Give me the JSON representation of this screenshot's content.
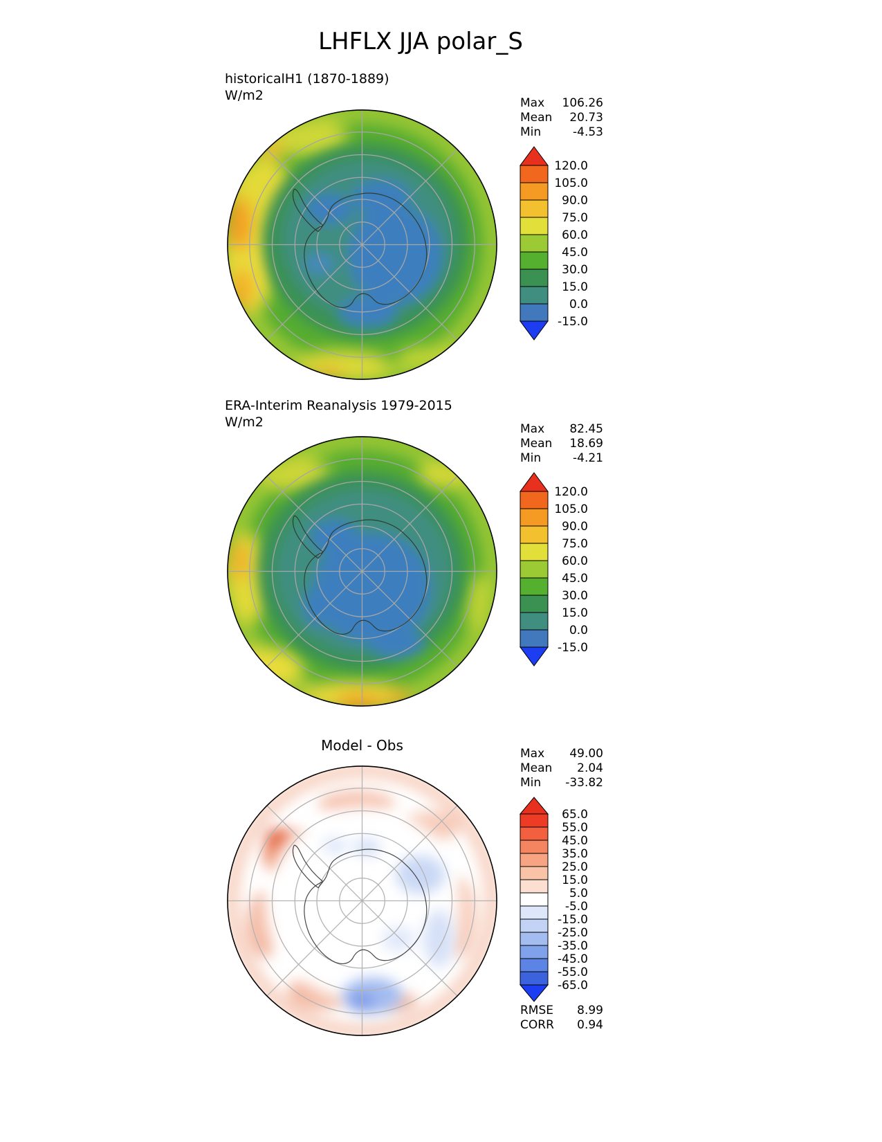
{
  "title": "LHFLX JJA polar_S",
  "panels": {
    "model": {
      "name": "historicalH1 (1870-1889)",
      "units": "W/m2",
      "stats": [
        {
          "label": "Max",
          "value": "106.26"
        },
        {
          "label": "Mean",
          "value": "20.73"
        },
        {
          "label": "Min",
          "value": "-4.53"
        }
      ]
    },
    "obs": {
      "name": "ERA-Interim Reanalysis 1979-2015",
      "units": "W/m2",
      "stats": [
        {
          "label": "Max",
          "value": "82.45"
        },
        {
          "label": "Mean",
          "value": "18.69"
        },
        {
          "label": "Min",
          "value": "-4.21"
        }
      ]
    },
    "diff": {
      "name": "Model - Obs",
      "stats": [
        {
          "label": "Max",
          "value": "49.00"
        },
        {
          "label": "Mean",
          "value": "2.04"
        },
        {
          "label": "Min",
          "value": "-33.82"
        }
      ],
      "metrics": [
        {
          "label": "RMSE",
          "value": "8.99"
        },
        {
          "label": "CORR",
          "value": "0.94"
        }
      ]
    }
  },
  "colorbar_full": {
    "ticks": [
      "120.0",
      "105.0",
      "90.0",
      "75.0",
      "60.0",
      "45.0",
      "30.0",
      "15.0",
      "0.0",
      "-15.0"
    ],
    "colors": [
      "#f2671e",
      "#f59b24",
      "#f3c02f",
      "#e3df3a",
      "#9cca35",
      "#55b02f",
      "#3a9152",
      "#3f8e80",
      "#4279bd"
    ],
    "arrow_top": "#e8301f",
    "arrow_bottom": "#1d3df2"
  },
  "colorbar_diff": {
    "ticks": [
      "65.0",
      "55.0",
      "45.0",
      "35.0",
      "25.0",
      "15.0",
      "5.0",
      "-5.0",
      "-15.0",
      "-25.0",
      "-35.0",
      "-45.0",
      "-55.0",
      "-65.0"
    ],
    "colors": [
      "#ee3b25",
      "#f2603f",
      "#f48560",
      "#f6a482",
      "#f9c3a8",
      "#fcdfd0",
      "#ffffff",
      "#dde7f9",
      "#c2d3f5",
      "#a3bdf0",
      "#7fa2ea",
      "#5b84e4",
      "#3a63dd"
    ],
    "arrow_top": "#e8301f",
    "arrow_bottom": "#1d3df2"
  },
  "chart_data": [
    {
      "type": "heatmap",
      "title": "historicalH1 (1870-1889)",
      "variable": "LHFLX",
      "season": "JJA",
      "region": "polar_S",
      "units": "W/m2",
      "projection": "south polar stereographic",
      "stats": {
        "max": 106.26,
        "mean": 20.73,
        "min": -4.53
      },
      "contour_levels": [
        -15.0,
        0.0,
        15.0,
        30.0,
        45.0,
        60.0,
        75.0,
        90.0,
        105.0,
        120.0
      ],
      "legend_position": "right"
    },
    {
      "type": "heatmap",
      "title": "ERA-Interim Reanalysis 1979-2015",
      "variable": "LHFLX",
      "season": "JJA",
      "region": "polar_S",
      "units": "W/m2",
      "projection": "south polar stereographic",
      "stats": {
        "max": 82.45,
        "mean": 18.69,
        "min": -4.21
      },
      "contour_levels": [
        -15.0,
        0.0,
        15.0,
        30.0,
        45.0,
        60.0,
        75.0,
        90.0,
        105.0,
        120.0
      ],
      "legend_position": "right"
    },
    {
      "type": "heatmap",
      "title": "Model - Obs",
      "variable": "LHFLX difference",
      "season": "JJA",
      "region": "polar_S",
      "projection": "south polar stereographic",
      "stats": {
        "max": 49.0,
        "mean": 2.04,
        "min": -33.82,
        "rmse": 8.99,
        "corr": 0.94
      },
      "contour_levels": [
        -65.0,
        -55.0,
        -45.0,
        -35.0,
        -25.0,
        -15.0,
        -5.0,
        5.0,
        15.0,
        25.0,
        35.0,
        45.0,
        55.0,
        65.0
      ],
      "legend_position": "right"
    }
  ]
}
